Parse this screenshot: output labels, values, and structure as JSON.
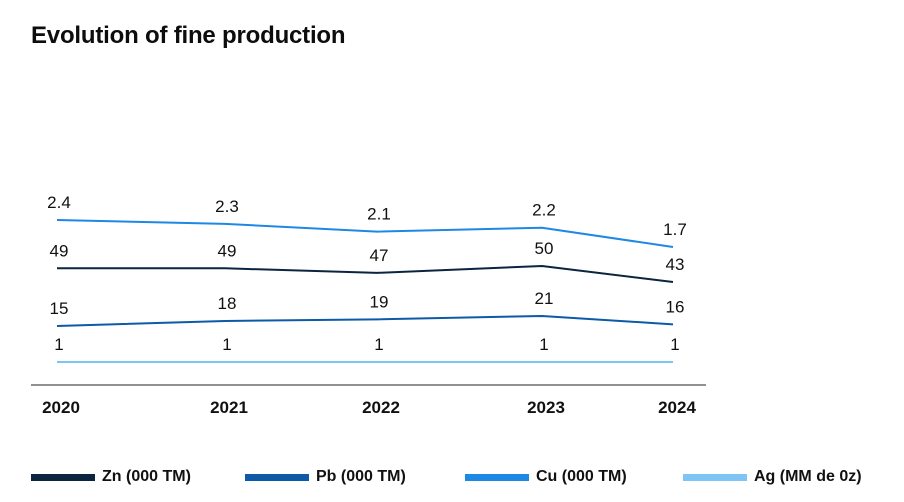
{
  "title": "Evolution of fine production",
  "chart_data": {
    "type": "line",
    "title": "Evolution of fine production",
    "x": [
      "2020",
      "2021",
      "2022",
      "2023",
      "2024"
    ],
    "series": [
      {
        "name": "Cu (000 TM)",
        "color": "#1e88e5",
        "values": [
          2.4,
          2.3,
          2.1,
          2.2,
          1.7
        ],
        "labels": [
          "2.4",
          "2.3",
          "2.1",
          "2.2",
          "1.7"
        ]
      },
      {
        "name": "Zn (000 TM)",
        "color": "#0b2440",
        "values": [
          49,
          49,
          47,
          50,
          43
        ],
        "labels": [
          "49",
          "49",
          "47",
          "50",
          "43"
        ]
      },
      {
        "name": "Pb (000 TM)",
        "color": "#0d5aa7",
        "values": [
          15,
          18,
          19,
          21,
          16
        ],
        "labels": [
          "15",
          "18",
          "19",
          "21",
          "16"
        ]
      },
      {
        "name": "Ag (MM de 0z)",
        "color": "#7ec4f5",
        "values": [
          1,
          1,
          1,
          1,
          1
        ],
        "labels": [
          "1",
          "1",
          "1",
          "1",
          "1"
        ]
      }
    ],
    "legend_position": "bottom",
    "grid": false,
    "y_axis_visible": false
  },
  "legend": [
    {
      "label": "Zn (000 TM)",
      "color": "#0b2440"
    },
    {
      "label": "Pb (000 TM)",
      "color": "#0d5aa7"
    },
    {
      "label": "Cu (000 TM)",
      "color": "#1e88e5"
    },
    {
      "label": "Ag (MM de 0z)",
      "color": "#7ec4f5"
    }
  ]
}
